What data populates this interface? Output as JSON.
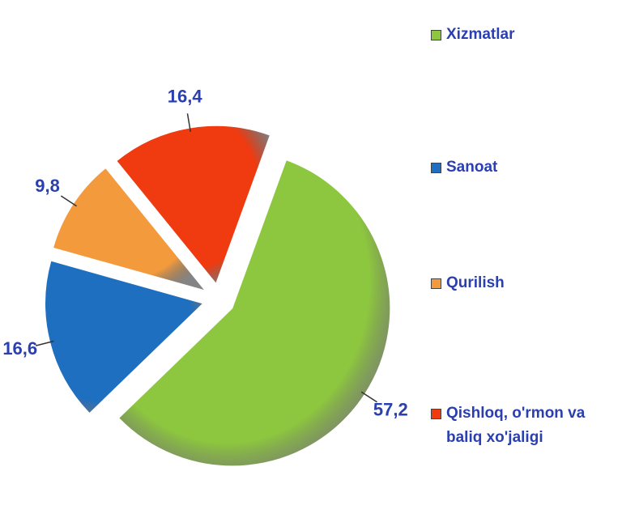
{
  "chart_data": {
    "type": "pie",
    "categories": [
      "Xizmatlar",
      "Sanoat",
      "Qurilish",
      "Qishloq, o'rmon va baliq xo'jaligi"
    ],
    "values": [
      57.2,
      16.6,
      9.8,
      16.4
    ],
    "value_labels": [
      "57,2",
      "16,6",
      "9,8",
      "16,4"
    ],
    "colors": [
      "#8dc63f",
      "#1f6fc0",
      "#f39a3c",
      "#f03a10"
    ],
    "legend": "right"
  }
}
